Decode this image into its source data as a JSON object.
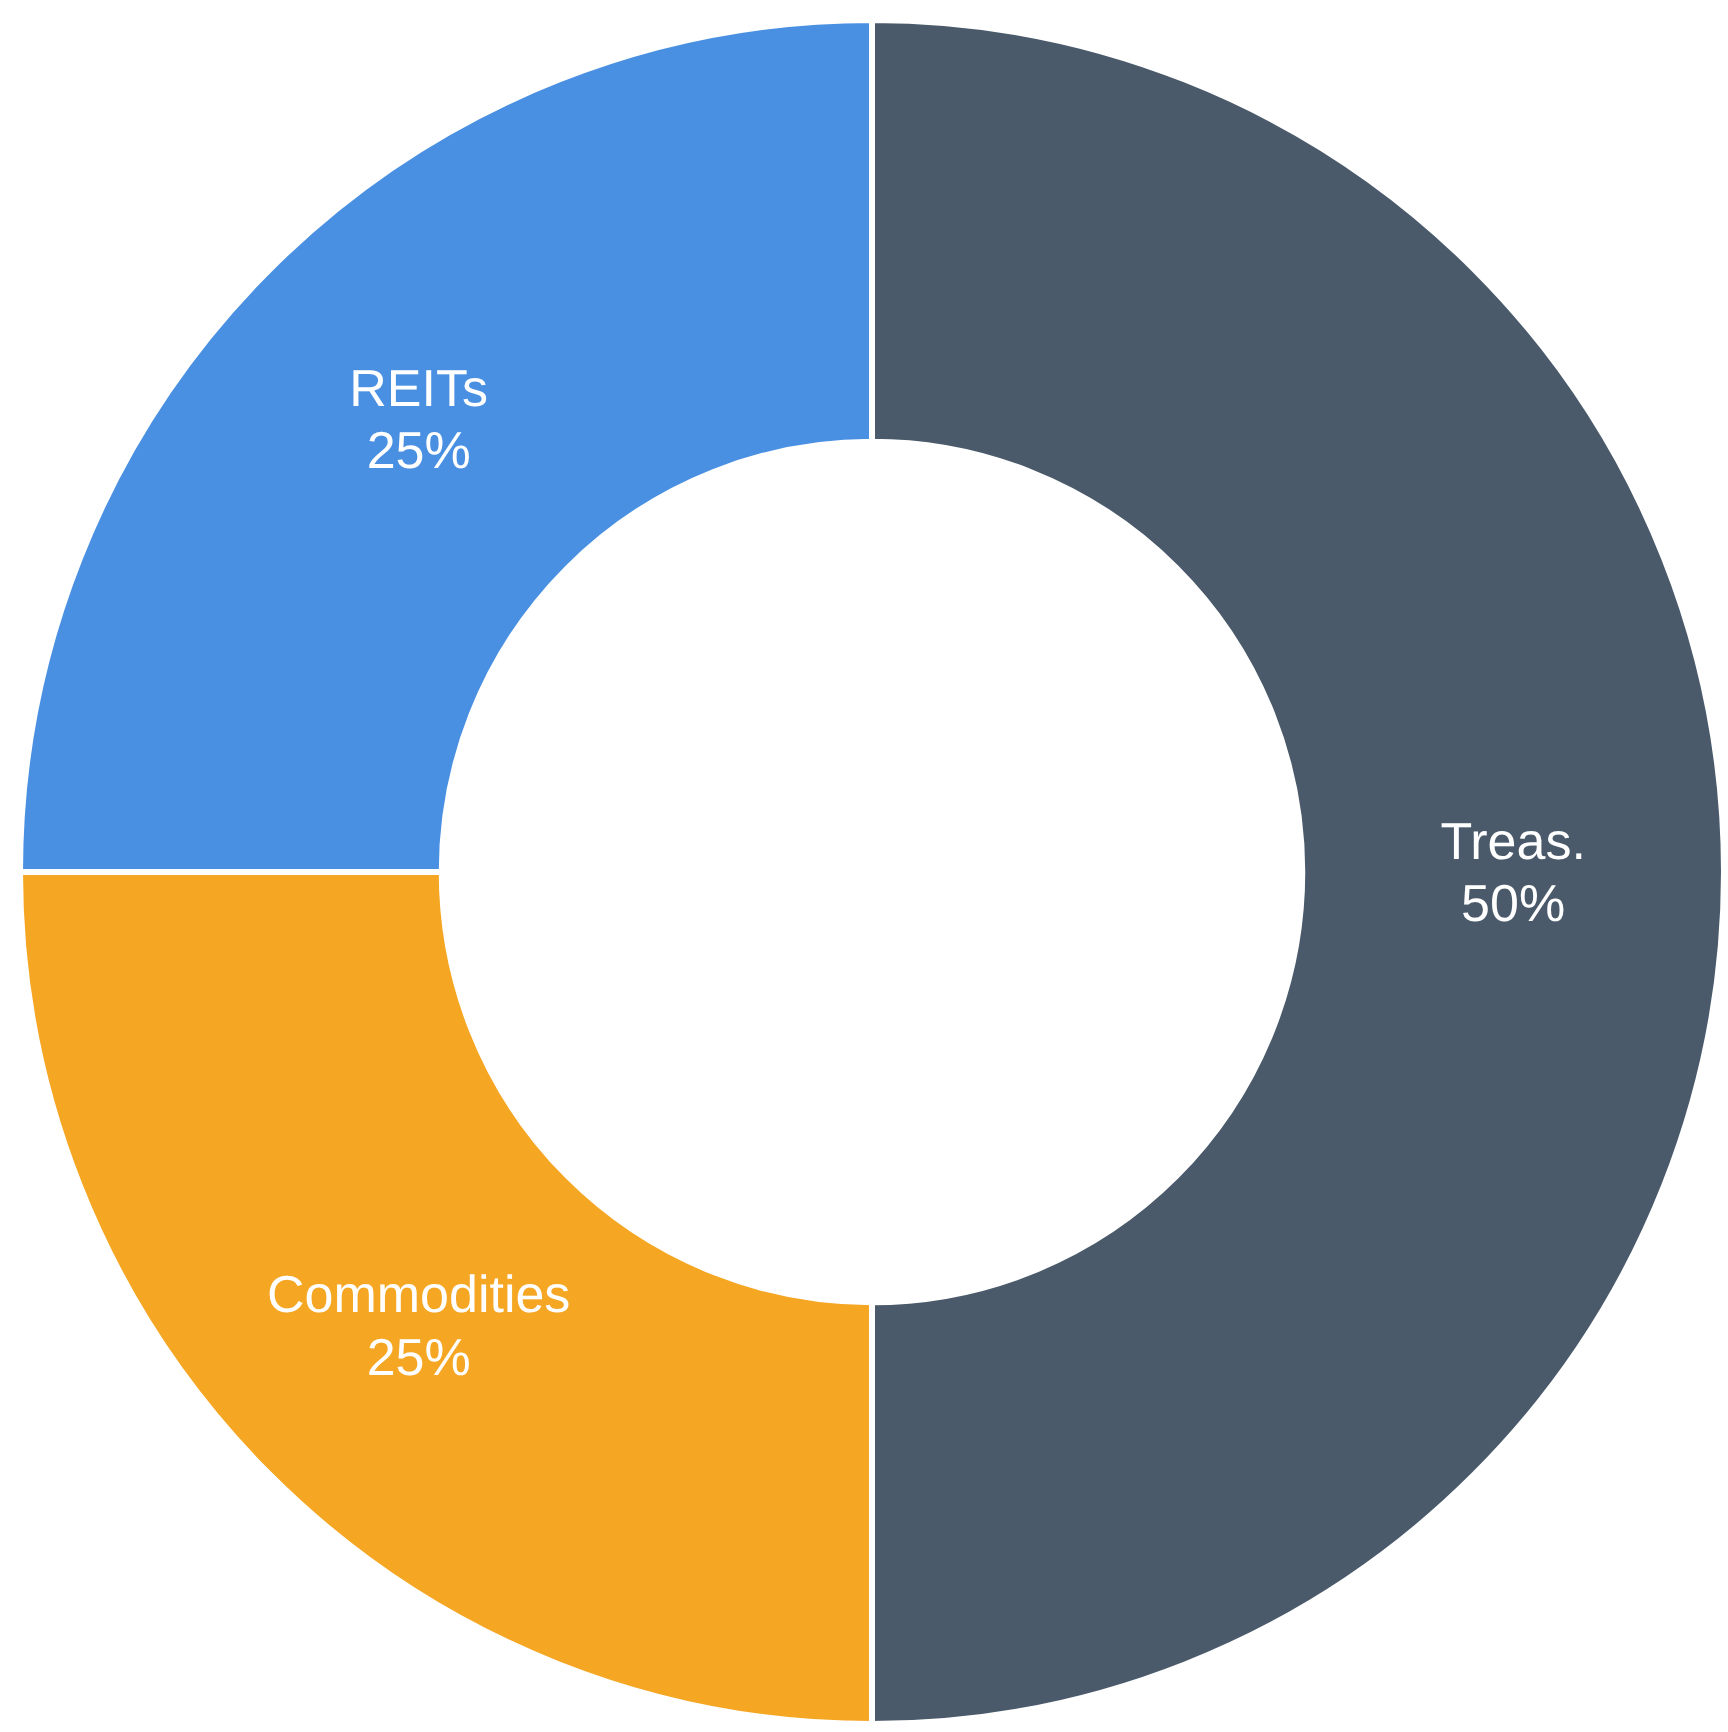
{
  "chart_data": {
    "type": "donut",
    "categories": [
      "Treas.",
      "Commodities",
      "REITs"
    ],
    "values": [
      50,
      25,
      25
    ],
    "value_labels": [
      "50%",
      "25%",
      "25%"
    ],
    "colors": [
      "#4a5a6b",
      "#f5a623",
      "#4a90e2"
    ],
    "legend": false
  }
}
